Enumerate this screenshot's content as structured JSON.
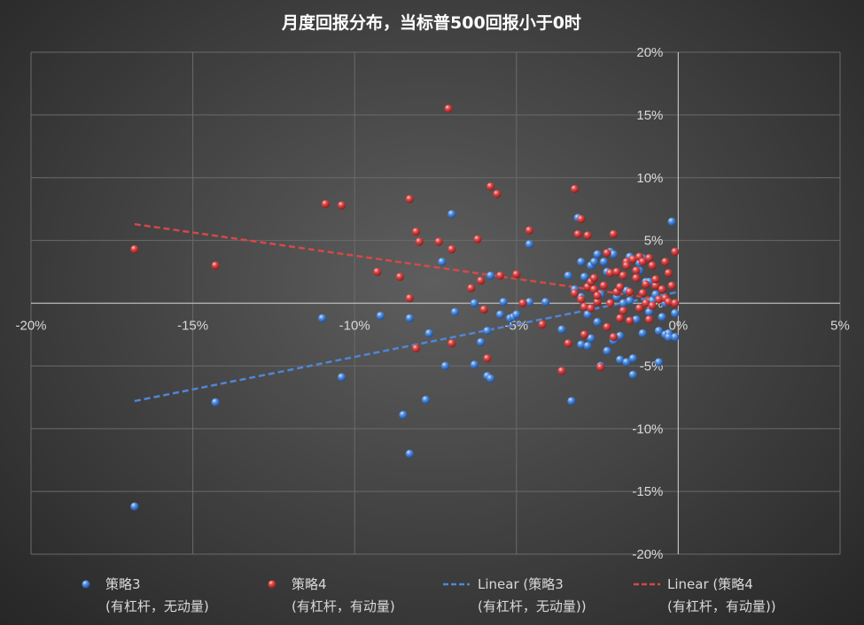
{
  "chart_data": {
    "type": "scatter",
    "title": "月度回报分布，当标普500回报小于0时",
    "xlabel": "",
    "ylabel": "",
    "xlim": [
      -0.2,
      0.05
    ],
    "ylim": [
      -0.2,
      0.2
    ],
    "x_ticks": [
      -0.2,
      -0.15,
      -0.1,
      -0.05,
      0,
      0.05
    ],
    "x_tick_labels": [
      "-20%",
      "-15%",
      "-10%",
      "-5%",
      "0%",
      "5%"
    ],
    "y_ticks": [
      0.2,
      0.15,
      0.1,
      0.05,
      0,
      -0.05,
      -0.1,
      -0.15,
      -0.2
    ],
    "y_tick_labels": [
      "20%",
      "15%",
      "10%",
      "5%",
      "0%",
      "-5%",
      "-10%",
      "-15%",
      "-20%"
    ],
    "grid": true,
    "legend_position": "bottom",
    "series": [
      {
        "name": "策略3",
        "name_line2": "(有杠杆，无动量)",
        "color": "#3f7fd2",
        "x": [
          -0.168,
          -0.143,
          -0.11,
          -0.104,
          -0.092,
          -0.085,
          -0.083,
          -0.083,
          -0.078,
          -0.077,
          -0.073,
          -0.072,
          -0.07,
          -0.069,
          -0.063,
          -0.063,
          -0.061,
          -0.059,
          -0.059,
          -0.058,
          -0.058,
          -0.055,
          -0.054,
          -0.052,
          -0.051,
          -0.05,
          -0.046,
          -0.046,
          -0.041,
          -0.036,
          -0.034,
          -0.033,
          -0.032,
          -0.031,
          -0.03,
          -0.03,
          -0.03,
          -0.029,
          -0.028,
          -0.028,
          -0.027,
          -0.027,
          -0.026,
          -0.025,
          -0.025,
          -0.024,
          -0.024,
          -0.023,
          -0.022,
          -0.022,
          -0.021,
          -0.02,
          -0.02,
          -0.019,
          -0.018,
          -0.018,
          -0.017,
          -0.017,
          -0.016,
          -0.016,
          -0.016,
          -0.015,
          -0.015,
          -0.014,
          -0.014,
          -0.013,
          -0.012,
          -0.012,
          -0.011,
          -0.011,
          -0.01,
          -0.009,
          -0.009,
          -0.008,
          -0.008,
          -0.007,
          -0.006,
          -0.006,
          -0.005,
          -0.004,
          -0.004,
          -0.003,
          -0.003,
          -0.002,
          -0.001,
          -0.001
        ],
        "y": [
          -0.162,
          -0.079,
          -0.012,
          -0.059,
          -0.01,
          -0.089,
          -0.012,
          -0.12,
          -0.077,
          -0.024,
          0.033,
          -0.05,
          0.071,
          -0.007,
          0.0,
          -0.049,
          -0.031,
          -0.058,
          -0.022,
          -0.06,
          0.022,
          -0.009,
          0.001,
          -0.012,
          -0.011,
          -0.009,
          0.047,
          0.001,
          0.001,
          -0.021,
          0.022,
          -0.078,
          0.011,
          0.068,
          0.033,
          -0.033,
          0.005,
          0.021,
          -0.034,
          -0.009,
          -0.028,
          0.03,
          0.033,
          0.039,
          -0.015,
          0.007,
          -0.05,
          0.033,
          0.025,
          -0.038,
          0.041,
          0.039,
          -0.03,
          0.005,
          -0.045,
          -0.026,
          0.022,
          0.0,
          0.032,
          0.01,
          -0.047,
          0.037,
          0.002,
          -0.044,
          -0.057,
          -0.013,
          0.026,
          0.032,
          0.036,
          -0.024,
          0.017,
          -0.007,
          0.017,
          0.03,
          0.002,
          0.007,
          -0.022,
          -0.047,
          -0.011,
          0.0,
          -0.025,
          -0.024,
          -0.027,
          0.065,
          -0.027,
          -0.008
        ]
      },
      {
        "name": "策略4",
        "name_line2": "(有杠杆，有动量)",
        "color": "#d23c3c",
        "x": [
          -0.168,
          -0.143,
          -0.109,
          -0.104,
          -0.093,
          -0.086,
          -0.083,
          -0.083,
          -0.081,
          -0.081,
          -0.08,
          -0.074,
          -0.071,
          -0.07,
          -0.07,
          -0.064,
          -0.062,
          -0.061,
          -0.06,
          -0.059,
          -0.058,
          -0.056,
          -0.055,
          -0.05,
          -0.048,
          -0.046,
          -0.042,
          -0.036,
          -0.034,
          -0.032,
          -0.032,
          -0.031,
          -0.03,
          -0.03,
          -0.029,
          -0.029,
          -0.028,
          -0.028,
          -0.027,
          -0.027,
          -0.026,
          -0.026,
          -0.025,
          -0.025,
          -0.024,
          -0.023,
          -0.022,
          -0.022,
          -0.021,
          -0.021,
          -0.02,
          -0.02,
          -0.019,
          -0.019,
          -0.018,
          -0.018,
          -0.017,
          -0.017,
          -0.016,
          -0.016,
          -0.015,
          -0.015,
          -0.014,
          -0.013,
          -0.013,
          -0.012,
          -0.012,
          -0.011,
          -0.011,
          -0.01,
          -0.01,
          -0.009,
          -0.009,
          -0.008,
          -0.008,
          -0.007,
          -0.007,
          -0.006,
          -0.005,
          -0.004,
          -0.004,
          -0.003,
          -0.003,
          -0.002,
          -0.001,
          -0.001
        ],
        "y": [
          0.043,
          0.03,
          0.079,
          0.078,
          0.025,
          0.021,
          0.083,
          0.004,
          -0.036,
          0.057,
          0.049,
          0.049,
          0.155,
          -0.032,
          0.043,
          0.012,
          0.051,
          0.018,
          -0.005,
          -0.044,
          0.093,
          0.087,
          0.022,
          0.023,
          0.0,
          0.058,
          -0.017,
          -0.054,
          -0.032,
          0.091,
          0.008,
          0.055,
          0.003,
          0.067,
          -0.025,
          -0.003,
          0.013,
          0.054,
          -0.004,
          0.017,
          0.02,
          0.011,
          0.001,
          0.006,
          -0.051,
          0.014,
          0.04,
          -0.019,
          0.024,
          0.0,
          0.055,
          -0.027,
          0.009,
          0.025,
          0.013,
          -0.012,
          -0.006,
          0.022,
          0.033,
          0.03,
          -0.014,
          0.009,
          0.035,
          0.026,
          0.02,
          -0.004,
          0.037,
          0.033,
          0.008,
          0.015,
          0.0,
          -0.013,
          0.036,
          0.03,
          -0.002,
          0.014,
          0.019,
          0.003,
          0.011,
          0.004,
          0.033,
          0.024,
          0.001,
          0.014,
          0.0,
          0.041
        ]
      }
    ],
    "trendlines": [
      {
        "name": "Linear (策略3",
        "name_line2": "(有杠杆，无动量))",
        "color": "#4f86d6",
        "x": [
          -0.168,
          0.0
        ],
        "y": [
          -0.078,
          0.009
        ]
      },
      {
        "name": "Linear (策略4",
        "name_line2": "(有杠杆，有动量))",
        "color": "#d64848",
        "x": [
          -0.168,
          0.0
        ],
        "y": [
          0.063,
          0.001
        ]
      }
    ]
  }
}
